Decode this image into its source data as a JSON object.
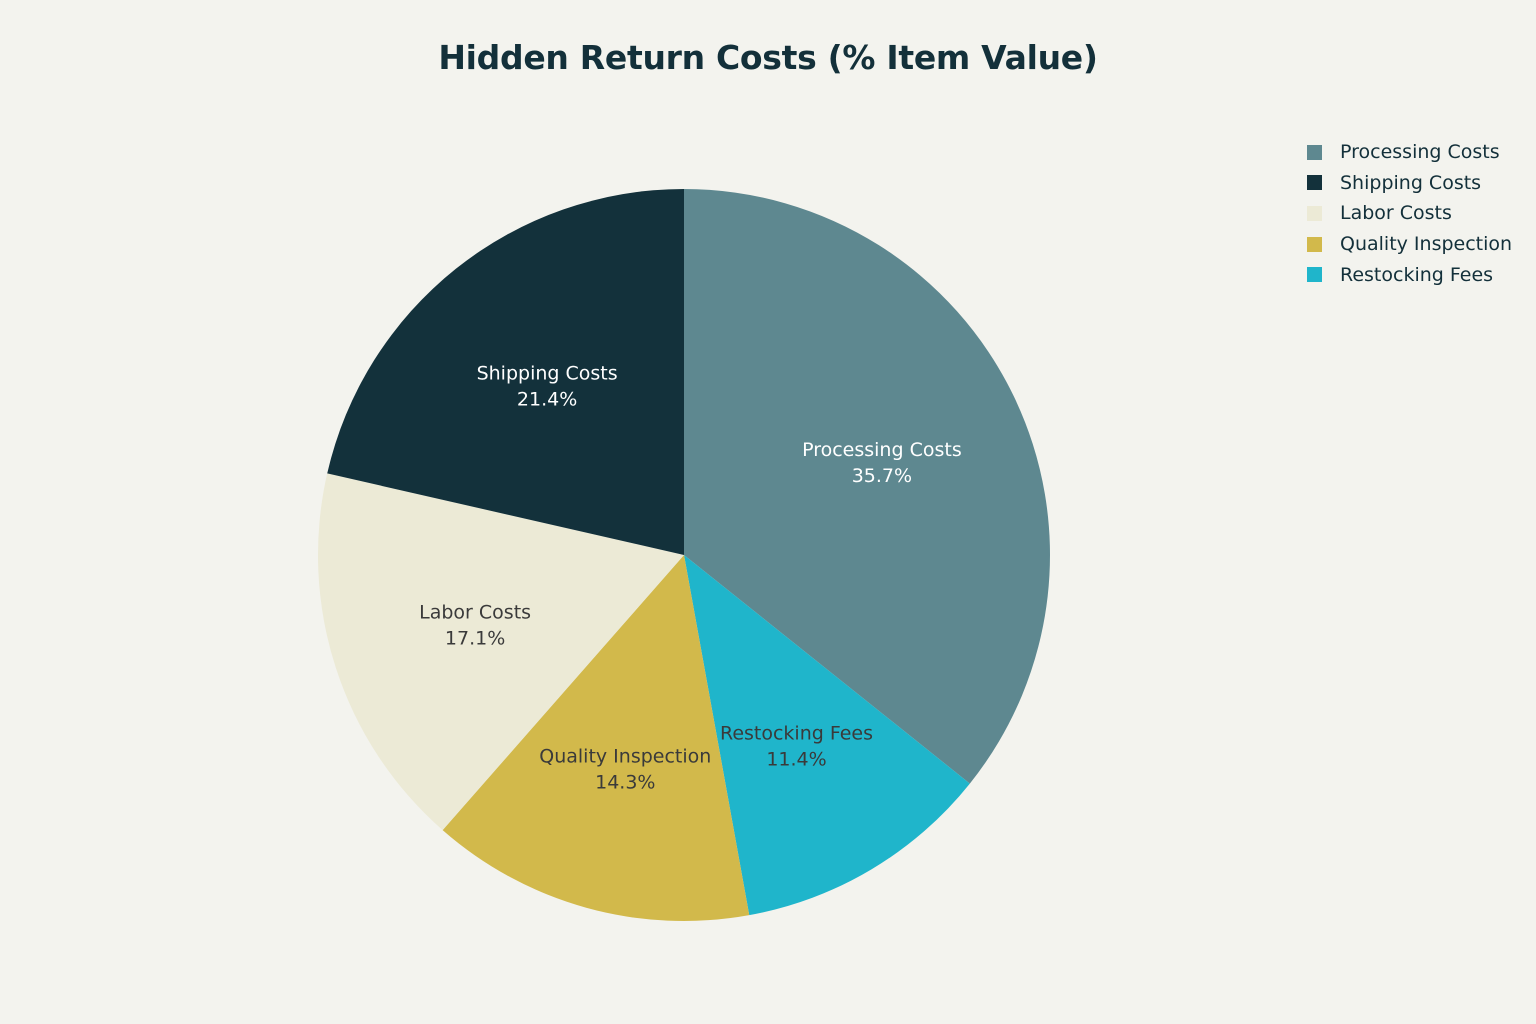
{
  "chart_data": {
    "type": "pie",
    "title": "Hidden Return Costs (% Item Value)",
    "slices": [
      {
        "label": "Processing Costs",
        "value": 35.7,
        "value_label": "35.7%",
        "color": "#5e8890",
        "label_color": "#ffffff"
      },
      {
        "label": "Restocking Fees",
        "value": 11.4,
        "value_label": "11.4%",
        "color": "#1fb5cb",
        "label_color": "#3a3a3a"
      },
      {
        "label": "Quality Inspection",
        "value": 14.3,
        "value_label": "14.3%",
        "color": "#d2b94b",
        "label_color": "#3a3a3a"
      },
      {
        "label": "Labor Costs",
        "value": 17.1,
        "value_label": "17.1%",
        "color": "#ecead6",
        "label_color": "#3a3a3a"
      },
      {
        "label": "Shipping Costs",
        "value": 21.4,
        "value_label": "21.4%",
        "color": "#13313b",
        "label_color": "#ffffff"
      }
    ],
    "start_angle": "12 o'clock",
    "direction": "clockwise",
    "legend": {
      "position": "top-right",
      "items": [
        "Processing Costs",
        "Shipping Costs",
        "Labor Costs",
        "Quality Inspection",
        "Restocking Fees"
      ]
    }
  }
}
